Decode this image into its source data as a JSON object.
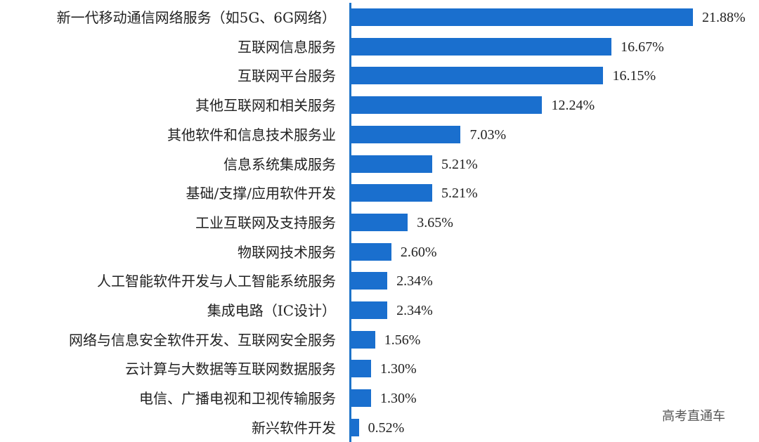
{
  "chart_data": {
    "type": "bar",
    "orientation": "horizontal",
    "title": "",
    "xlabel": "",
    "ylabel": "",
    "grid": false,
    "legend": null,
    "bar_color": "#1a6fce",
    "value_format": "percent",
    "categories": [
      "新一代移动通信网络服务（如5G、6G网络）",
      "互联网信息服务",
      "互联网平台服务",
      "其他互联网和相关服务",
      "其他软件和信息技术服务业",
      "信息系统集成服务",
      "基础/支撑/应用软件开发",
      "工业互联网及支持服务",
      "物联网技术服务",
      "人工智能软件开发与人工智能系统服务",
      "集成电路（IC设计）",
      "网络与信息安全软件开发、互联网安全服务",
      "云计算与大数据等互联网数据服务",
      "电信、广播电视和卫视传输服务",
      "新兴软件开发"
    ],
    "values": [
      21.88,
      16.67,
      16.15,
      12.24,
      7.03,
      5.21,
      5.21,
      3.65,
      2.6,
      2.34,
      2.34,
      1.56,
      1.3,
      1.3,
      0.52
    ],
    "value_labels": [
      "21.88%",
      "16.67%",
      "16.15%",
      "12.24%",
      "7.03%",
      "5.21%",
      "5.21%",
      "3.65%",
      "2.60%",
      "2.34%",
      "2.34%",
      "1.56%",
      "1.30%",
      "1.30%",
      "0.52%"
    ]
  },
  "watermark": "高考直通车"
}
